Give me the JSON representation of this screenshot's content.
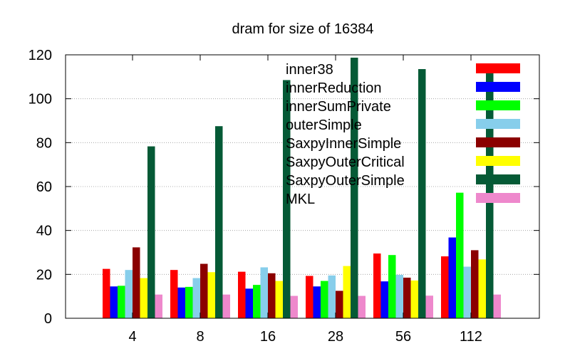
{
  "chart_data": {
    "type": "bar",
    "title": "dram for size of 16384",
    "xlabel": "",
    "ylabel": "",
    "categories": [
      "4",
      "8",
      "16",
      "28",
      "56",
      "112"
    ],
    "ylim": [
      0,
      120
    ],
    "yticks": [
      0,
      20,
      40,
      60,
      80,
      100,
      120
    ],
    "grid": true,
    "legend_position": "top-right",
    "series": [
      {
        "name": "inner38",
        "color": "#ff0000",
        "values": [
          22.5,
          22,
          21.2,
          19.3,
          29.5,
          28.2
        ]
      },
      {
        "name": "innerReduction",
        "color": "#0000ff",
        "values": [
          14.5,
          14,
          13.5,
          14.5,
          16.8,
          36.8
        ]
      },
      {
        "name": "innerSumPrivate",
        "color": "#00ff00",
        "values": [
          14.8,
          14.3,
          15.2,
          17,
          28.8,
          57.2
        ]
      },
      {
        "name": "outerSimple",
        "color": "#87ceeb",
        "values": [
          22,
          18.3,
          23.2,
          19.5,
          19.8,
          23.5
        ]
      },
      {
        "name": "SaxpyInnerSimple",
        "color": "#8b0000",
        "values": [
          32.3,
          24.8,
          20.5,
          12.5,
          18.5,
          31
        ]
      },
      {
        "name": "SaxpyOuterCritical",
        "color": "#ffff00",
        "values": [
          18.3,
          21,
          17,
          23.8,
          17.2,
          26.8
        ]
      },
      {
        "name": "SaxpyOuterSimple",
        "color": "#055a36",
        "values": [
          78.3,
          87.5,
          108.5,
          118.7,
          113.5,
          113.8
        ]
      },
      {
        "name": "MKL",
        "color": "#ee88cc",
        "values": [
          10.8,
          10.8,
          10.2,
          10.2,
          10.3,
          10.8
        ]
      }
    ]
  }
}
